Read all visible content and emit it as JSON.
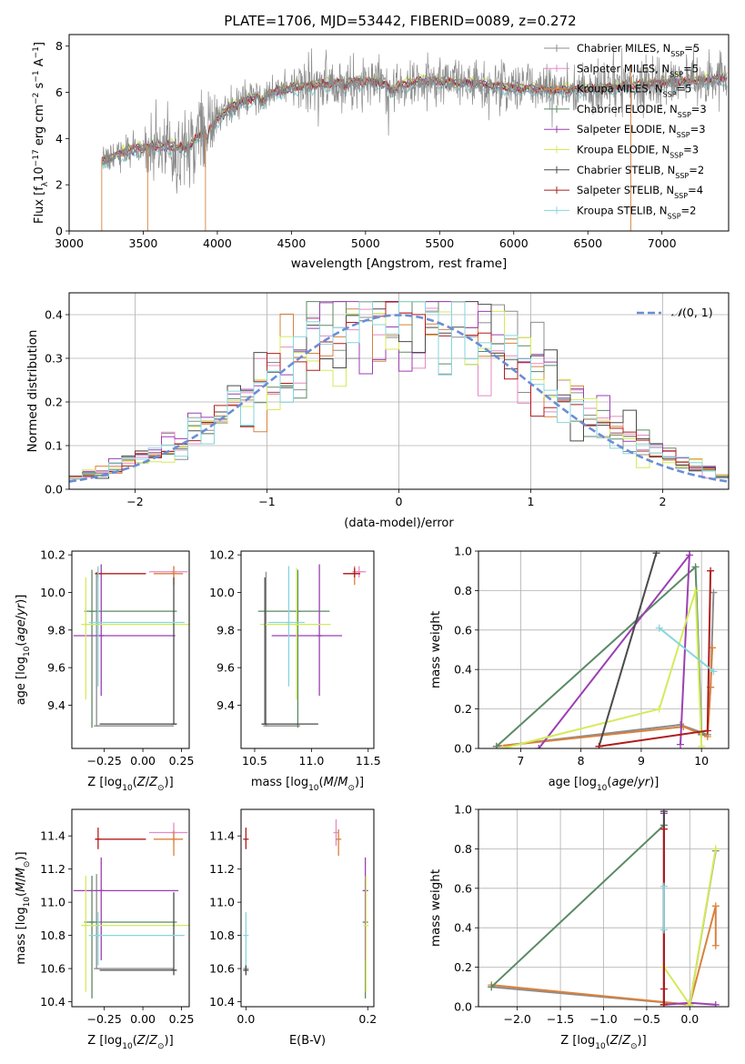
{
  "figure": {
    "title": "PLATE=1706, MJD=53442, FIBERID=0089, z=0.272"
  },
  "series_styles": [
    {
      "name": "Chabrier MILES",
      "nssp": "5",
      "color": "#8c8c8c"
    },
    {
      "name": "Salpeter MILES",
      "nssp": "5",
      "color": "#e58ac4"
    },
    {
      "name": "Kroupa MILES",
      "nssp": "5",
      "color": "#d9823d"
    },
    {
      "name": "Chabrier ELODIE",
      "nssp": "3",
      "color": "#5b8a65"
    },
    {
      "name": "Salpeter ELODIE",
      "nssp": "3",
      "color": "#9b3fb3"
    },
    {
      "name": "Kroupa ELODIE",
      "nssp": "3",
      "color": "#d4ea5a"
    },
    {
      "name": "Chabrier STELIB",
      "nssp": "2",
      "color": "#4a4a4a"
    },
    {
      "name": "Salpeter STELIB",
      "nssp": "4",
      "color": "#b01c1c"
    },
    {
      "name": "Kroupa STELIB",
      "nssp": "2",
      "color": "#86d6dc"
    }
  ],
  "chart_data": [
    {
      "id": "spectrum",
      "type": "line",
      "xlabel": "wavelength [Angstrom, rest frame]",
      "ylabel": "Flux [f_λ 10^-17 erg cm^-2 s^-1 A^-1]",
      "xlim": [
        3000,
        7450
      ],
      "ylim": [
        0,
        8.5
      ],
      "xticks": [
        "3000",
        "3500",
        "4000",
        "4500",
        "5000",
        "5500",
        "6000",
        "6500",
        "7000"
      ],
      "yticks": [
        "0",
        "2",
        "4",
        "6",
        "8"
      ],
      "grid": false,
      "legend": "top-right",
      "legend_entries": [
        "Chabrier MILES, N_SSP=5",
        "Salpeter MILES, N_SSP=5",
        "Kroupa MILES, N_SSP=5",
        "Chabrier ELODIE, N_SSP=3",
        "Salpeter ELODIE, N_SSP=3",
        "Kroupa ELODIE, N_SSP=3",
        "Chabrier STELIB, N_SSP=2",
        "Salpeter STELIB, N_SSP=4",
        "Kroupa STELIB, N_SSP=2"
      ],
      "data_start": 3220,
      "data_end": 7440,
      "continuum_knots": [
        [
          3220,
          3.0
        ],
        [
          3400,
          3.5
        ],
        [
          3600,
          3.7
        ],
        [
          3800,
          3.6
        ],
        [
          3950,
          4.6
        ],
        [
          4100,
          5.4
        ],
        [
          4300,
          5.9
        ],
        [
          4500,
          6.2
        ],
        [
          4700,
          6.35
        ],
        [
          5000,
          6.5
        ],
        [
          5200,
          6.3
        ],
        [
          5400,
          6.5
        ],
        [
          5700,
          6.4
        ],
        [
          6000,
          6.2
        ],
        [
          6300,
          6.1
        ],
        [
          6600,
          6.2
        ],
        [
          7000,
          6.4
        ],
        [
          7440,
          6.6
        ]
      ]
    },
    {
      "id": "residuals",
      "type": "line",
      "xlabel": "(data-model)/error",
      "ylabel": "Normed distribution",
      "xlim": [
        -2.5,
        2.5
      ],
      "ylim": [
        0,
        0.45
      ],
      "xticks": [
        "−2",
        "−1",
        "0",
        "1",
        "2"
      ],
      "yticks": [
        "0.0",
        "0.1",
        "0.2",
        "0.3",
        "0.4"
      ],
      "grid": true,
      "legend": "top-right",
      "legend_entries": [
        "N(0, 1)"
      ],
      "histogram_bin_width": 0.1
    },
    {
      "id": "age-vs-Z",
      "type": "scatter",
      "xlabel": "Z [log10(Z/Z⊙)]",
      "ylabel": "age [log10(age/yr)]",
      "xlim": [
        -0.46,
        0.3
      ],
      "ylim": [
        9.17,
        10.22
      ],
      "xticks": [
        "−0.25",
        "0.00",
        "0.25"
      ],
      "yticks": [
        "9.4",
        "9.6",
        "9.8",
        "10.0",
        "10.2"
      ],
      "grid": false,
      "points": [
        {
          "x": -0.3,
          "y": 9.29,
          "xerr": [
            0,
            0.5
          ],
          "yerr": [
            0,
            0.82
          ]
        },
        {
          "x": 0.2,
          "y": 10.11,
          "xerr": [
            0.16,
            0.09
          ],
          "yerr": [
            0.03,
            0.03
          ]
        },
        {
          "x": 0.2,
          "y": 10.1,
          "xerr": [
            0.13,
            0.06
          ],
          "yerr": [
            0.06,
            0.04
          ]
        },
        {
          "x": -0.33,
          "y": 9.9,
          "xerr": [
            0.05,
            0.55
          ],
          "yerr": [
            0.62,
            0.22
          ]
        },
        {
          "x": -0.27,
          "y": 9.77,
          "xerr": [
            0.18,
            0.48
          ],
          "yerr": [
            0.32,
            0.38
          ]
        },
        {
          "x": -0.37,
          "y": 9.83,
          "xerr": [
            0.03,
            0.68
          ],
          "yerr": [
            0.4,
            0.25
          ]
        },
        {
          "x": 0.2,
          "y": 9.3,
          "xerr": [
            0.48,
            0.02
          ],
          "yerr": [
            0,
            0.78
          ]
        },
        {
          "x": -0.29,
          "y": 10.1,
          "xerr": [
            0.02,
            0.31
          ],
          "yerr": [
            0.02,
            0.03
          ]
        },
        {
          "x": -0.29,
          "y": 9.84,
          "xerr": [
            0.06,
            0.56
          ],
          "yerr": [
            0.34,
            0.3
          ]
        }
      ]
    },
    {
      "id": "age-vs-mass",
      "type": "scatter",
      "xlabel": "mass [log10(M/M⊙)]",
      "ylabel": "",
      "xlim": [
        10.38,
        11.55
      ],
      "ylim": [
        9.17,
        10.22
      ],
      "xticks": [
        "10.5",
        "11.0",
        "11.5"
      ],
      "yticks": [
        "9.4",
        "9.6",
        "9.8",
        "10.0",
        "10.2"
      ],
      "grid": false,
      "points": [
        {
          "x": 10.6,
          "y": 9.29,
          "xerr": [
            0,
            0.3
          ],
          "yerr": [
            0,
            0.82
          ]
        },
        {
          "x": 11.42,
          "y": 10.11,
          "xerr": [
            0.06,
            0.06
          ],
          "yerr": [
            0.03,
            0.03
          ]
        },
        {
          "x": 11.38,
          "y": 10.1,
          "xerr": [
            0.1,
            0.04
          ],
          "yerr": [
            0.06,
            0.04
          ]
        },
        {
          "x": 10.88,
          "y": 9.9,
          "xerr": [
            0.35,
            0.28
          ],
          "yerr": [
            0.62,
            0.22
          ]
        },
        {
          "x": 11.07,
          "y": 9.77,
          "xerr": [
            0.42,
            0.2
          ],
          "yerr": [
            0.32,
            0.38
          ]
        },
        {
          "x": 10.87,
          "y": 9.83,
          "xerr": [
            0.32,
            0.3
          ],
          "yerr": [
            0.4,
            0.3
          ]
        },
        {
          "x": 10.59,
          "y": 9.3,
          "xerr": [
            0.03,
            0.47
          ],
          "yerr": [
            0,
            0.78
          ]
        },
        {
          "x": 11.38,
          "y": 10.1,
          "xerr": [
            0.1,
            0.05
          ],
          "yerr": [
            0.02,
            0.03
          ]
        },
        {
          "x": 10.8,
          "y": 9.84,
          "xerr": [
            0.18,
            0.14
          ],
          "yerr": [
            0.34,
            0.3
          ]
        }
      ]
    },
    {
      "id": "weight-vs-age",
      "type": "line",
      "xlabel": "age [log10(age/yr)]",
      "ylabel": "mass weight",
      "xlim": [
        6.3,
        10.45
      ],
      "ylim": [
        0,
        1.0
      ],
      "xticks": [
        "7",
        "8",
        "9",
        "10"
      ],
      "yticks": [
        "0.0",
        "0.2",
        "0.4",
        "0.6",
        "0.8",
        "1.0"
      ],
      "grid": true,
      "series": [
        {
          "x": [
            6.6,
            9.65,
            10.1,
            10.15,
            10.2
          ],
          "y": [
            0.01,
            0.12,
            0.07,
            0.31,
            0.79
          ]
        },
        {
          "x": 6.6,
          "y": 0.01
        },
        {
          "x": [
            6.6,
            9.7,
            10.1,
            10.15,
            10.18
          ],
          "y": [
            0.01,
            0.11,
            0.06,
            0.31,
            0.51
          ]
        },
        {
          "x": [
            6.6,
            9.9,
            10.0
          ],
          "y": [
            0.01,
            0.92,
            0.07
          ]
        },
        {
          "x": [
            7.3,
            9.8,
            9.65
          ],
          "y": [
            0.0,
            0.98,
            0.02
          ]
        },
        {
          "x": [
            6.7,
            9.3,
            9.9,
            10.0
          ],
          "y": [
            0.0,
            0.2,
            0.8,
            0.01
          ]
        },
        {
          "x": [
            8.3,
            9.25
          ],
          "y": [
            0.01,
            0.99
          ]
        },
        {
          "x": [
            8.3,
            10.1,
            10.15
          ],
          "y": [
            0.01,
            0.09,
            0.9
          ]
        },
        {
          "x": [
            9.3,
            10.2
          ],
          "y": [
            0.61,
            0.39
          ]
        }
      ]
    },
    {
      "id": "mass-vs-Z",
      "type": "scatter",
      "xlabel": "Z [log10(Z/Z⊙)]",
      "ylabel": "mass [log10(M/M⊙)]",
      "xlim": [
        -0.46,
        0.3
      ],
      "ylim": [
        10.37,
        11.56
      ],
      "xticks": [
        "−0.25",
        "0.00",
        "0.25"
      ],
      "yticks": [
        "10.4",
        "10.6",
        "10.8",
        "11.0",
        "11.2",
        "11.4"
      ],
      "grid": false,
      "points": [
        {
          "x": -0.3,
          "y": 10.6,
          "xerr": [
            0,
            0.5
          ],
          "yerr": [
            0,
            0.57
          ]
        },
        {
          "x": 0.2,
          "y": 11.42,
          "xerr": [
            0.16,
            0.09
          ],
          "yerr": [
            0.06,
            0.06
          ]
        },
        {
          "x": 0.2,
          "y": 11.38,
          "xerr": [
            0.13,
            0.06
          ],
          "yerr": [
            0.1,
            0.05
          ]
        },
        {
          "x": -0.33,
          "y": 10.88,
          "xerr": [
            0.05,
            0.55
          ],
          "yerr": [
            0.46,
            0.28
          ]
        },
        {
          "x": -0.27,
          "y": 11.07,
          "xerr": [
            0.18,
            0.5
          ],
          "yerr": [
            0.42,
            0.2
          ]
        },
        {
          "x": -0.37,
          "y": 10.86,
          "xerr": [
            0.03,
            0.68
          ],
          "yerr": [
            0.4,
            0.3
          ]
        },
        {
          "x": 0.2,
          "y": 10.59,
          "xerr": [
            0.48,
            0.02
          ],
          "yerr": [
            0.03,
            0.47
          ]
        },
        {
          "x": -0.29,
          "y": 11.38,
          "xerr": [
            0.02,
            0.31
          ],
          "yerr": [
            0.06,
            0.07
          ]
        },
        {
          "x": -0.29,
          "y": 10.8,
          "xerr": [
            0.06,
            0.56
          ],
          "yerr": [
            0.18,
            0.14
          ]
        }
      ]
    },
    {
      "id": "mass-vs-EBV",
      "type": "scatter",
      "xlabel": "E(B-V)",
      "ylabel": "",
      "xlim": [
        -0.008,
        0.21
      ],
      "ylim": [
        10.37,
        11.56
      ],
      "xticks": [
        "0.0",
        "0.2"
      ],
      "yticks": [
        "10.4",
        "10.6",
        "10.8",
        "11.0",
        "11.2",
        "11.4"
      ],
      "grid": false,
      "points": [
        {
          "x": 0.0,
          "y": 10.6,
          "yerr": [
            0.02,
            0.02
          ]
        },
        {
          "x": 0.148,
          "y": 11.42,
          "yerr": [
            0.08,
            0.08
          ]
        },
        {
          "x": 0.152,
          "y": 11.38,
          "yerr": [
            0.1,
            0.06
          ]
        },
        {
          "x": 0.196,
          "y": 10.88,
          "yerr": [
            0.46,
            0.28
          ]
        },
        {
          "x": 0.196,
          "y": 11.07,
          "yerr": [
            0.42,
            0.2
          ]
        },
        {
          "x": 0.197,
          "y": 10.86,
          "yerr": [
            0.4,
            0.3
          ]
        },
        {
          "x": 0.0,
          "y": 10.59,
          "yerr": [
            0.03,
            0.03
          ]
        },
        {
          "x": 0.0,
          "y": 11.38,
          "yerr": [
            0.06,
            0.07
          ]
        },
        {
          "x": 0.0,
          "y": 10.8,
          "yerr": [
            0.18,
            0.14
          ]
        }
      ]
    },
    {
      "id": "weight-vs-Z",
      "type": "line",
      "xlabel": "Z [log10(Z/Z⊙)]",
      "ylabel": "mass weight",
      "xlim": [
        -2.45,
        0.45
      ],
      "ylim": [
        0,
        1.0
      ],
      "xticks": [
        "−2.0",
        "−1.5",
        "−1.0",
        "−0.5",
        "0.0"
      ],
      "yticks": [
        "0.0",
        "0.2",
        "0.4",
        "0.6",
        "0.8",
        "1.0"
      ],
      "grid": true,
      "series": [
        {
          "x": [
            -2.3,
            0.0,
            0.3
          ],
          "y": [
            0.1,
            0.01,
            0.79
          ]
        },
        {
          "x": [
            -2.3,
            0.0,
            0.3,
            0.3
          ],
          "y": [
            0.11,
            0.01,
            0.51,
            0.31
          ]
        },
        {
          "x": [
            -2.3,
            -0.3,
            -0.3
          ],
          "y": [
            0.1,
            0.92,
            0.01
          ]
        },
        {
          "x": [
            -0.3,
            -0.3,
            0.0,
            0.3
          ],
          "y": [
            0.98,
            0.01,
            0.02,
            0.01
          ]
        },
        {
          "x": [
            -0.3,
            0.0,
            0.3
          ],
          "y": [
            0.2,
            0.01,
            0.8
          ]
        },
        {
          "x": [
            -0.3,
            -0.3
          ],
          "y": [
            0.01,
            0.99
          ]
        },
        {
          "x": [
            -0.3,
            -0.3,
            -0.3
          ],
          "y": [
            0.01,
            0.9,
            0.09
          ]
        },
        {
          "x": [
            -0.3,
            -0.3
          ],
          "y": [
            0.61,
            0.39
          ]
        }
      ]
    }
  ]
}
